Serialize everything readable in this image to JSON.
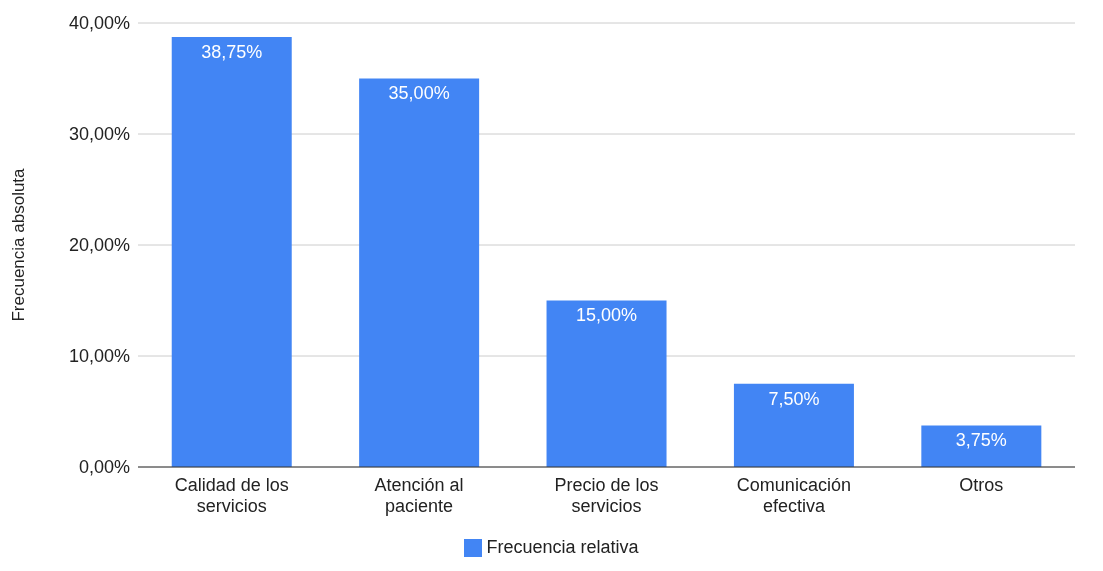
{
  "chart_data": {
    "type": "bar",
    "ylabel": "Frecuencia absoluta",
    "categories": [
      "Calidad de los servicios",
      "Atención al paciente",
      "Precio de los servicios",
      "Comunicación efectiva",
      "Otros"
    ],
    "series": [
      {
        "name": "Frecuencia relativa",
        "color": "#4285f4",
        "values": [
          38.75,
          35,
          15,
          7.5,
          3.75
        ],
        "value_labels": [
          "38,75%",
          "35,00%",
          "15,00%",
          "7,50%",
          "3,75%"
        ]
      }
    ],
    "ylim": [
      0,
      40
    ],
    "yticks": [
      {
        "value": 0,
        "label": "0,00%"
      },
      {
        "value": 10,
        "label": "10,00%"
      },
      {
        "value": 20,
        "label": "20,00%"
      },
      {
        "value": 30,
        "label": "30,00%"
      },
      {
        "value": 40,
        "label": "40,00%"
      }
    ],
    "grid": "y",
    "legend": "bottom"
  }
}
